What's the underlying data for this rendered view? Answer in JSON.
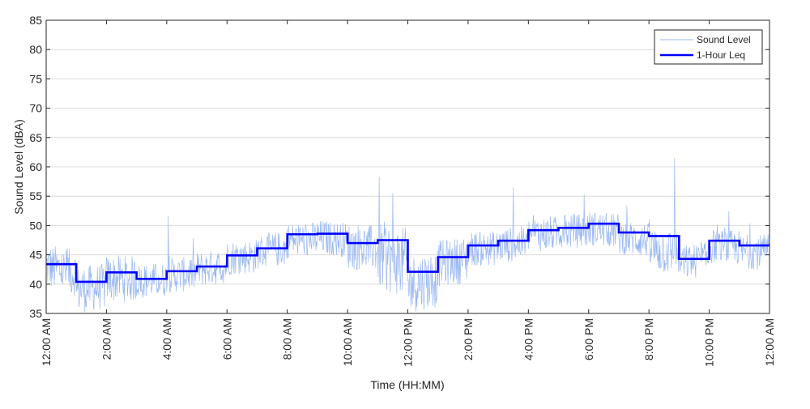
{
  "chart_data": {
    "type": "line",
    "title": "",
    "xlabel": "Time (HH:MM)",
    "ylabel": "Sound Level (dBA)",
    "xlim": [
      0,
      24
    ],
    "ylim": [
      35,
      85
    ],
    "x_tick_values": [
      0,
      2,
      4,
      6,
      8,
      10,
      12,
      14,
      16,
      18,
      20,
      22,
      24
    ],
    "x_tick_labels": [
      "12:00 AM",
      "2:00 AM",
      "4:00 AM",
      "6:00 AM",
      "8:00 AM",
      "10:00 AM",
      "12:00 PM",
      "2:00 PM",
      "4:00 PM",
      "6:00 PM",
      "8:00 PM",
      "10:00 PM",
      "12:00 AM"
    ],
    "y_ticks": [
      35,
      40,
      45,
      50,
      55,
      60,
      65,
      70,
      75,
      80,
      85
    ],
    "grid": "horizontal",
    "legend_position": "top-right",
    "series": [
      {
        "name": "Sound Level",
        "style": "thin line",
        "color": "#9ab8f0",
        "hourly_mean": [
          43,
          39,
          41,
          40.5,
          41.5,
          42.5,
          44.5,
          45.5,
          47.5,
          48,
          46.5,
          45,
          40,
          43.5,
          46,
          46.5,
          48.5,
          49,
          49.5,
          48,
          46,
          43.5,
          46.5,
          45.5
        ],
        "hourly_range": [
          4,
          4,
          4,
          3,
          3,
          3,
          3,
          3,
          3,
          3,
          4,
          6,
          5,
          4,
          3,
          3,
          3,
          3,
          3,
          3,
          4,
          3,
          3,
          3
        ],
        "spikes": [
          [
            4.05,
            51.7
          ],
          [
            11.05,
            58.3
          ],
          [
            11.5,
            55.5
          ],
          [
            15.5,
            56.5
          ],
          [
            17.85,
            55.3
          ],
          [
            20.85,
            61.5
          ],
          [
            22.65,
            52.4
          ]
        ]
      },
      {
        "name": "1-Hour Leq",
        "style": "thick step line",
        "color": "#0000ff",
        "x": [
          0,
          1,
          2,
          3,
          4,
          5,
          6,
          7,
          8,
          9,
          10,
          11,
          12,
          13,
          14,
          15,
          16,
          17,
          18,
          19,
          20,
          21,
          22,
          23,
          24
        ],
        "values": [
          43.4,
          40.4,
          42.0,
          40.9,
          42.2,
          43.0,
          44.9,
          46.1,
          48.5,
          48.6,
          47.0,
          47.5,
          42.1,
          44.6,
          46.6,
          47.4,
          49.2,
          49.6,
          50.3,
          48.8,
          48.2,
          44.3,
          47.4,
          46.6,
          46.6
        ]
      }
    ]
  }
}
